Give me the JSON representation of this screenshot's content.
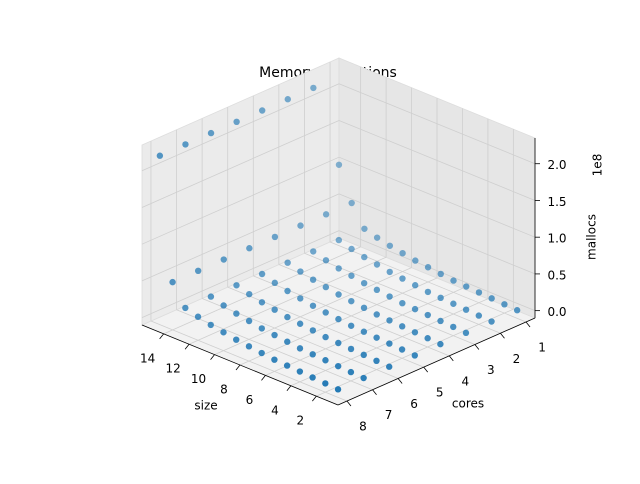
{
  "chart_data": {
    "type": "scatter3d",
    "title": "Memory Allocations",
    "x_label": "size",
    "y_label": "cores",
    "z_label": "mallocs",
    "z_offset_label": "1e8",
    "color": "#1f77b4",
    "xlim": [
      0.3,
      15.7
    ],
    "ylim": [
      0.65,
      8.35
    ],
    "zlim": [
      -0.1,
      2.35
    ],
    "xticks": [
      2,
      4,
      6,
      8,
      10,
      12,
      14
    ],
    "yticks": [
      1,
      2,
      3,
      4,
      5,
      6,
      7,
      8
    ],
    "zticks": [
      {
        "value": 0,
        "label": "0.0"
      },
      0.5,
      {
        "value": 1,
        "label": "1.0"
      },
      1.5,
      {
        "value": 2,
        "label": "2.0"
      }
    ],
    "grid": true,
    "x": [
      1,
      1,
      1,
      1,
      1,
      1,
      1,
      1,
      2,
      2,
      2,
      2,
      2,
      2,
      2,
      2,
      3,
      3,
      3,
      3,
      3,
      3,
      3,
      3,
      4,
      4,
      4,
      4,
      4,
      4,
      4,
      4,
      5,
      5,
      5,
      5,
      5,
      5,
      5,
      5,
      6,
      6,
      6,
      6,
      6,
      6,
      6,
      6,
      7,
      7,
      7,
      7,
      7,
      7,
      7,
      7,
      8,
      8,
      8,
      8,
      8,
      8,
      8,
      8,
      9,
      9,
      9,
      9,
      9,
      9,
      9,
      9,
      10,
      10,
      10,
      10,
      10,
      10,
      10,
      10,
      11,
      11,
      11,
      11,
      11,
      11,
      11,
      11,
      12,
      12,
      12,
      12,
      12,
      12,
      12,
      12,
      13,
      13,
      13,
      13,
      13,
      13,
      13,
      13,
      14,
      14,
      14,
      14,
      14,
      14,
      14,
      14,
      15,
      15,
      15,
      15,
      15,
      15,
      15,
      15
    ],
    "y": [
      1,
      2,
      3,
      4,
      5,
      6,
      7,
      8,
      1,
      2,
      3,
      4,
      5,
      6,
      7,
      8,
      1,
      2,
      3,
      4,
      5,
      6,
      7,
      8,
      1,
      2,
      3,
      4,
      5,
      6,
      7,
      8,
      1,
      2,
      3,
      4,
      5,
      6,
      7,
      8,
      1,
      2,
      3,
      4,
      5,
      6,
      7,
      8,
      1,
      2,
      3,
      4,
      5,
      6,
      7,
      8,
      1,
      2,
      3,
      4,
      5,
      6,
      7,
      8,
      1,
      2,
      3,
      4,
      5,
      6,
      7,
      8,
      1,
      2,
      3,
      4,
      5,
      6,
      7,
      8,
      1,
      2,
      3,
      4,
      5,
      6,
      7,
      8,
      1,
      2,
      3,
      4,
      5,
      6,
      7,
      8,
      1,
      2,
      3,
      4,
      5,
      6,
      7,
      8,
      1,
      2,
      3,
      4,
      5,
      6,
      7,
      8,
      1,
      2,
      3,
      4,
      5,
      6,
      7,
      8
    ],
    "z": [
      0.01,
      0.01,
      0.01,
      0.01,
      0.01,
      0.01,
      0.01,
      0.01,
      0.02,
      0.02,
      0.02,
      0.02,
      0.02,
      0.02,
      0.02,
      0.02,
      0.03,
      0.03,
      0.03,
      0.03,
      0.03,
      0.03,
      0.03,
      0.03,
      0.04,
      0.04,
      0.04,
      0.04,
      0.04,
      0.04,
      0.04,
      0.04,
      0.05,
      0.05,
      0.05,
      0.05,
      0.05,
      0.05,
      0.05,
      0.05,
      0.06,
      0.06,
      0.06,
      0.06,
      0.06,
      0.06,
      0.06,
      0.06,
      0.08,
      0.08,
      0.08,
      0.08,
      0.08,
      0.08,
      0.08,
      0.08,
      0.1,
      0.1,
      0.1,
      0.1,
      0.1,
      0.1,
      0.1,
      0.1,
      0.12,
      0.12,
      0.12,
      0.12,
      0.12,
      0.12,
      0.12,
      0.12,
      0.15,
      0.15,
      0.15,
      0.15,
      0.15,
      0.15,
      0.15,
      0.15,
      0.18,
      0.18,
      0.18,
      0.18,
      0.18,
      0.18,
      0.18,
      0.18,
      0.22,
      0.22,
      0.22,
      0.22,
      0.22,
      0.22,
      0.22,
      0.22,
      0.27,
      0.27,
      0.27,
      0.27,
      0.27,
      0.27,
      0.27,
      0.27,
      0.55,
      0.55,
      0.55,
      0.55,
      0.55,
      0.55,
      0.55,
      0.55,
      1.0,
      2.2,
      2.2,
      2.2,
      2.2,
      2.2,
      2.2,
      2.2
    ]
  }
}
